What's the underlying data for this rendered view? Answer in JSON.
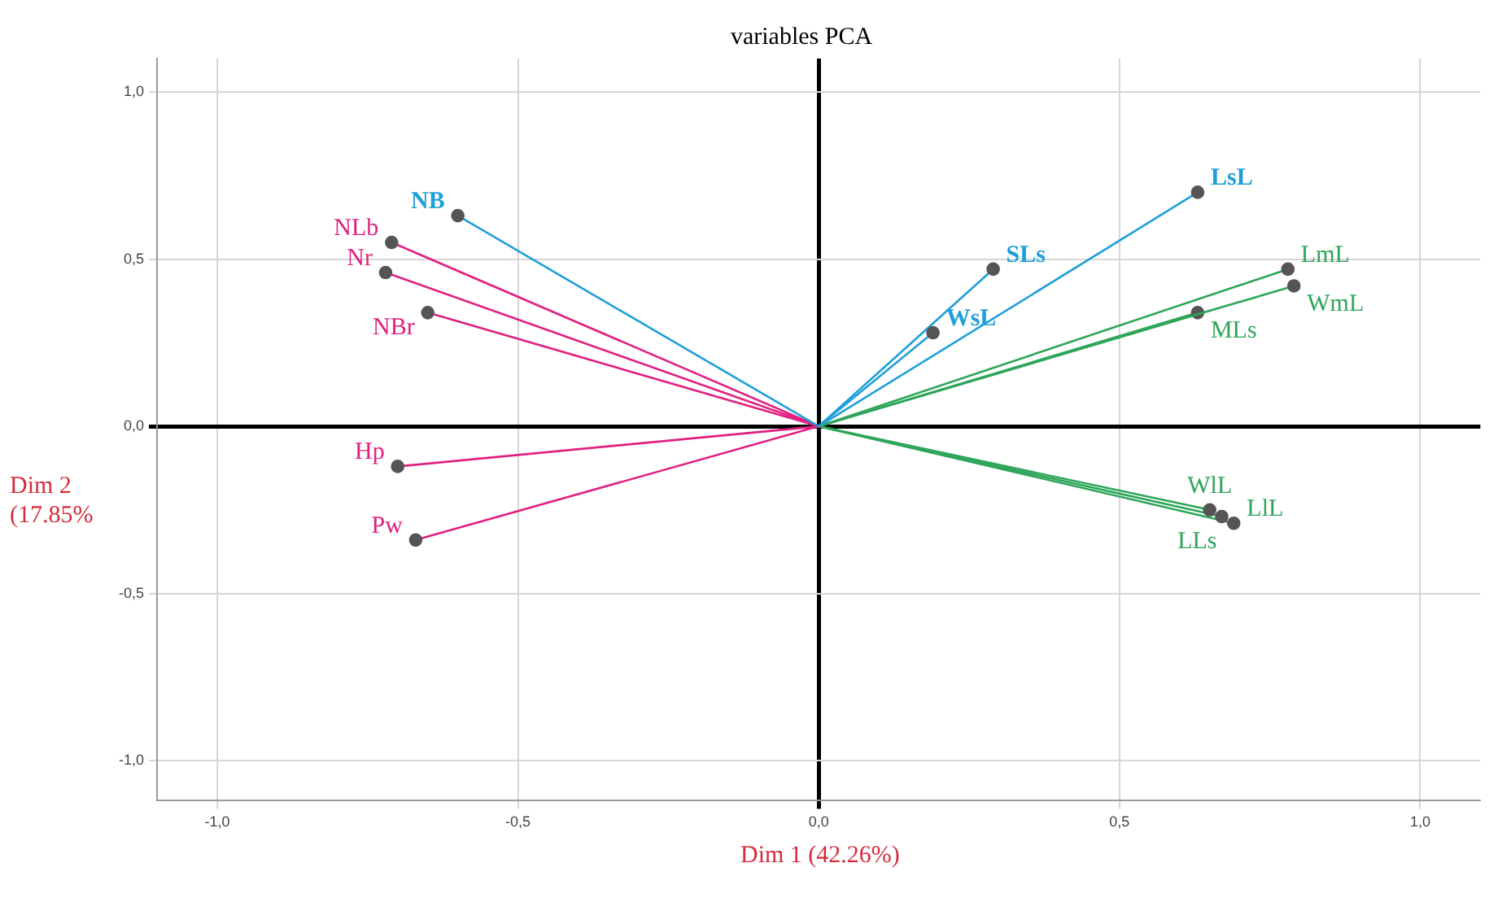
{
  "chart_data": {
    "type": "line",
    "title": "variables PCA",
    "xlabel": "Dim 1 (42.26%)",
    "ylabel": "Dim 2 (17.85%",
    "xlim": [
      -1.1,
      1.1
    ],
    "ylim": [
      -1.12,
      1.1
    ],
    "xticks": [
      {
        "value": -1,
        "label": "-1,0"
      },
      {
        "value": -0.5,
        "label": "-0,5"
      },
      {
        "value": 0,
        "label": "0,0"
      },
      {
        "value": 0.5,
        "label": "0,5"
      },
      {
        "value": 1,
        "label": "1,0"
      }
    ],
    "yticks": [
      {
        "value": -1,
        "label": "-1,0"
      },
      {
        "value": -0.5,
        "label": "-0,5"
      },
      {
        "value": 0,
        "label": "0,0"
      },
      {
        "value": 0.5,
        "label": "0,5"
      },
      {
        "value": 1,
        "label": "1,0"
      }
    ],
    "grid": true,
    "legend": false,
    "marker": "circle",
    "series": [
      {
        "name": "NB",
        "color": "#1f9fd8",
        "x": [
          0,
          -0.6
        ],
        "values": [
          0,
          0.63
        ]
      },
      {
        "name": "NLb",
        "color": "#e0207f",
        "x": [
          0,
          -0.71
        ],
        "values": [
          0,
          0.55
        ]
      },
      {
        "name": "Nr",
        "color": "#e0207f",
        "x": [
          0,
          -0.72
        ],
        "values": [
          0,
          0.46
        ]
      },
      {
        "name": "NBr",
        "color": "#e0207f",
        "x": [
          0,
          -0.65
        ],
        "values": [
          0,
          0.34
        ]
      },
      {
        "name": "Hp",
        "color": "#e0207f",
        "x": [
          0,
          -0.7
        ],
        "values": [
          0,
          -0.12
        ]
      },
      {
        "name": "Pw",
        "color": "#e0207f",
        "x": [
          0,
          -0.67
        ],
        "values": [
          0,
          -0.34
        ]
      },
      {
        "name": "WsL",
        "color": "#1f9fd8",
        "x": [
          0,
          0.19
        ],
        "values": [
          0,
          0.28
        ]
      },
      {
        "name": "SLs",
        "color": "#1f9fd8",
        "x": [
          0,
          0.29
        ],
        "values": [
          0,
          0.47
        ]
      },
      {
        "name": "LsL",
        "color": "#1f9fd8",
        "x": [
          0,
          0.63
        ],
        "values": [
          0,
          0.7
        ]
      },
      {
        "name": "LmL",
        "color": "#2ea55a",
        "x": [
          0,
          0.78
        ],
        "values": [
          0,
          0.47
        ]
      },
      {
        "name": "WmL",
        "color": "#2ea55a",
        "x": [
          0,
          0.79
        ],
        "values": [
          0,
          0.42
        ]
      },
      {
        "name": "MLs",
        "color": "#2ea55a",
        "x": [
          0,
          0.63
        ],
        "values": [
          0,
          0.34
        ]
      },
      {
        "name": "WlL",
        "color": "#2ea55a",
        "x": [
          0,
          0.65
        ],
        "values": [
          0,
          -0.25
        ]
      },
      {
        "name": "LLs",
        "color": "#2ea55a",
        "x": [
          0,
          0.67
        ],
        "values": [
          0,
          -0.27
        ]
      },
      {
        "name": "LlL",
        "color": "#2ea55a",
        "x": [
          0,
          0.69
        ],
        "values": [
          0,
          -0.29
        ]
      }
    ]
  }
}
